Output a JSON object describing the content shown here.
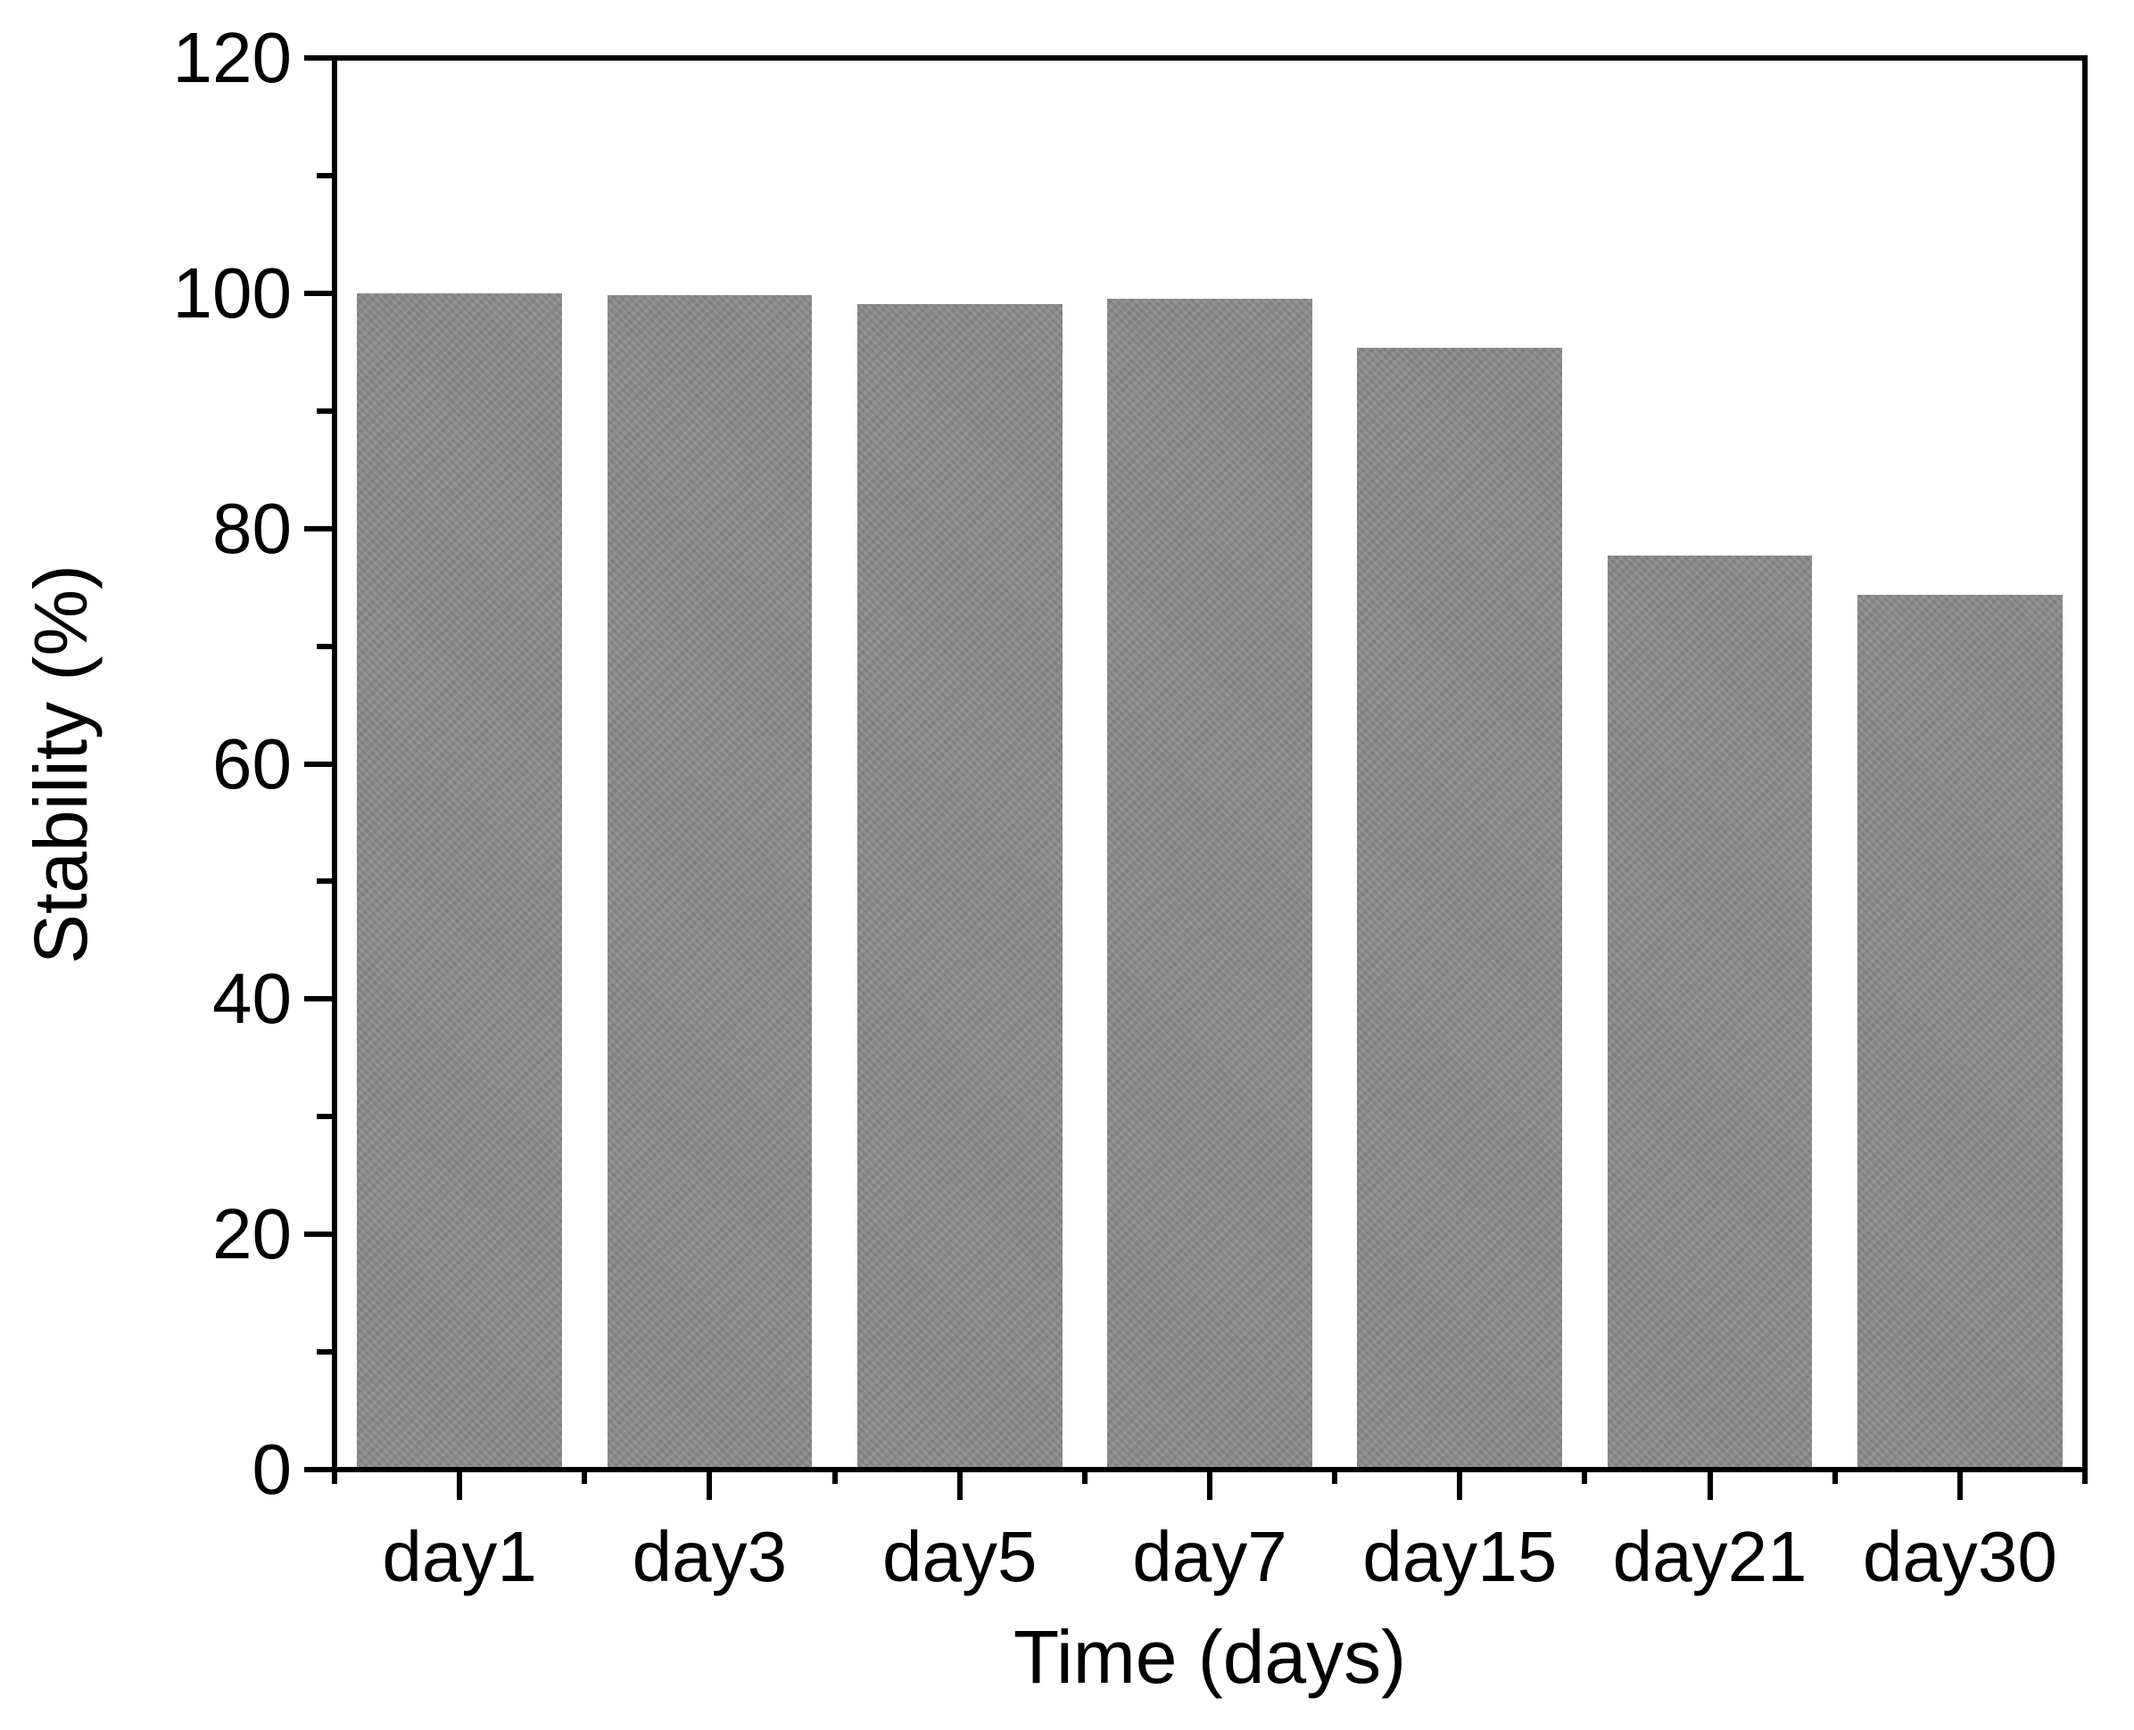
{
  "figure": {
    "background_color": "#ffffff",
    "text_color": "#000000"
  },
  "chart_data": {
    "type": "bar",
    "title": "",
    "categories": [
      "day1",
      "day3",
      "day5",
      "day7",
      "day15",
      "day21",
      "day30"
    ],
    "values": [
      100,
      99.8,
      99.1,
      99.5,
      95.4,
      77.7,
      74.4
    ],
    "series_name": "Stability",
    "xlabel": "Time (days)",
    "ylabel": "Stability (%)",
    "ylim": [
      0,
      120
    ],
    "yticks": [
      0,
      20,
      40,
      60,
      80,
      100,
      120
    ],
    "yminorticks": [
      10,
      30,
      50,
      70,
      90,
      110
    ],
    "grid": false,
    "legend": "none",
    "bar_color": "#8a8a8a",
    "axis_color": "#000000",
    "bar_width_fraction": 0.82
  }
}
